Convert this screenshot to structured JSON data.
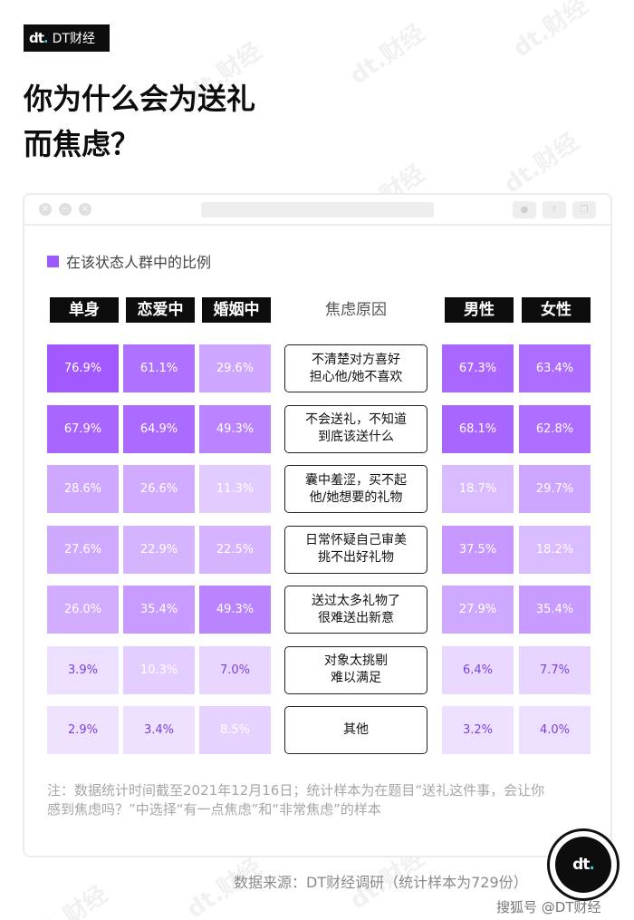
{
  "brand": {
    "mark": "dt",
    "name": "DT财经"
  },
  "title": {
    "line1": "你为什么会为送礼",
    "line2": "而焦虑？"
  },
  "window": {
    "close_glyph": "×",
    "min_glyph": "−",
    "max_glyph": "×"
  },
  "legend": {
    "label": "在该状态人群中的比例",
    "color": "#9b59ff"
  },
  "chart_data": {
    "type": "table",
    "columns_left": [
      "单身",
      "恋爱中",
      "婚姻中"
    ],
    "center_header": "焦虑原因",
    "columns_right": [
      "男性",
      "女性"
    ],
    "rows": [
      {
        "reason_lines": [
          "不清楚对方喜好",
          "担心他/她不喜欢"
        ],
        "values": [
          76.9,
          61.1,
          29.6,
          67.3,
          63.4
        ],
        "labels": [
          "76.9%",
          "61.1%",
          "29.6%",
          "67.3%",
          "63.4%"
        ]
      },
      {
        "reason_lines": [
          "不会送礼，不知道",
          "到底该送什么"
        ],
        "values": [
          67.9,
          64.9,
          49.3,
          68.1,
          62.8
        ],
        "labels": [
          "67.9%",
          "64.9%",
          "49.3%",
          "68.1%",
          "62.8%"
        ]
      },
      {
        "reason_lines": [
          "囊中羞涩，买不起",
          "他/她想要的礼物"
        ],
        "values": [
          28.6,
          26.6,
          11.3,
          18.7,
          29.7
        ],
        "labels": [
          "28.6%",
          "26.6%",
          "11.3%",
          "18.7%",
          "29.7%"
        ]
      },
      {
        "reason_lines": [
          "日常怀疑自己审美",
          "挑不出好礼物"
        ],
        "values": [
          27.6,
          22.9,
          22.5,
          37.5,
          18.2
        ],
        "labels": [
          "27.6%",
          "22.9%",
          "22.5%",
          "37.5%",
          "18.2%"
        ]
      },
      {
        "reason_lines": [
          "送过太多礼物了",
          "很难送出新意"
        ],
        "values": [
          26.0,
          35.4,
          49.3,
          27.9,
          35.4
        ],
        "labels": [
          "26.0%",
          "35.4%",
          "49.3%",
          "27.9%",
          "35.4%"
        ]
      },
      {
        "reason_lines": [
          "对象太挑剔",
          "难以满足"
        ],
        "values": [
          3.9,
          10.3,
          7.0,
          6.4,
          7.7
        ],
        "labels": [
          "3.9%",
          "10.3%",
          "7.0%",
          "6.4%",
          "7.7%"
        ]
      },
      {
        "reason_lines": [
          "其他"
        ],
        "values": [
          2.9,
          3.4,
          8.5,
          3.2,
          4.0
        ],
        "labels": [
          "2.9%",
          "3.4%",
          "8.5%",
          "3.2%",
          "4.0%"
        ]
      }
    ],
    "color_scale": {
      "high": "#a259ff",
      "low": "#f6efff"
    }
  },
  "note": "注：数据统计时间截至2021年12月16日；统计样本为在题目“送礼这件事，会让你感到焦虑吗？”中选择“有一点焦虑”和“非常焦虑”的样本",
  "source": "数据来源：DT财经调研（统计样本为729份）",
  "footer": "搜狐号 @DT财经",
  "watermark": "dt.财经"
}
